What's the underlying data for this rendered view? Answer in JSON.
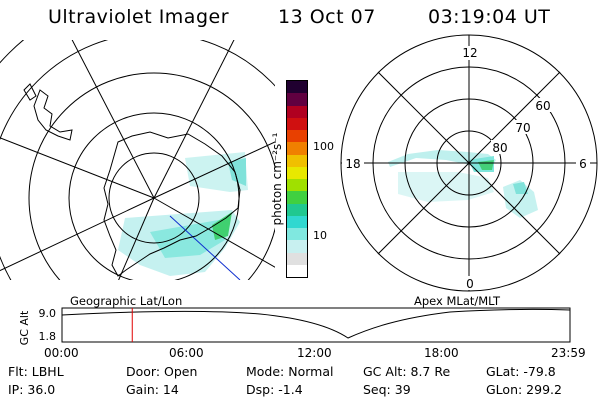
{
  "header": {
    "title": "Ultraviolet Imager",
    "date": "13 Oct 07",
    "time": "03:19:04 UT"
  },
  "geo_panel": {
    "label": "Geographic Lat/Lon"
  },
  "mag_panel": {
    "label": "Apex MLat/MLT",
    "mlt_labels": {
      "top": "12",
      "left": "18",
      "right": "6",
      "bottom": "0"
    },
    "lat_labels": [
      "60",
      "70",
      "80"
    ]
  },
  "colorbar": {
    "unit_label": "photon cm⁻²s⁻¹",
    "ticks": [
      "100",
      "10"
    ],
    "colors": [
      "#ffffff",
      "#e0e0e0",
      "#c8f0f0",
      "#80e8e0",
      "#30d8d0",
      "#20c890",
      "#40d040",
      "#a0e000",
      "#e8e800",
      "#f0c000",
      "#f08000",
      "#e84000",
      "#d01010",
      "#b00020",
      "#600040",
      "#200030"
    ]
  },
  "timeline": {
    "ylabel": "GC Alt",
    "yticks": [
      "9.0",
      "1.8"
    ],
    "xticks": [
      "00:00",
      "06:00",
      "12:00",
      "18:00",
      "23:59"
    ],
    "marker_time": "03:19",
    "marker_color": "#e00000"
  },
  "info": {
    "flt": "Flt: LBHL",
    "ip": "IP: 36.0",
    "door": "Door: Open",
    "gain": "Gain: 14",
    "mode": "Mode: Normal",
    "dsp": "Dsp:    -1.4",
    "gcalt": "GC Alt: 8.7 Re",
    "seq": "Seq: 39",
    "glat": "GLat: -79.8",
    "glon": "GLon: 299.2"
  }
}
